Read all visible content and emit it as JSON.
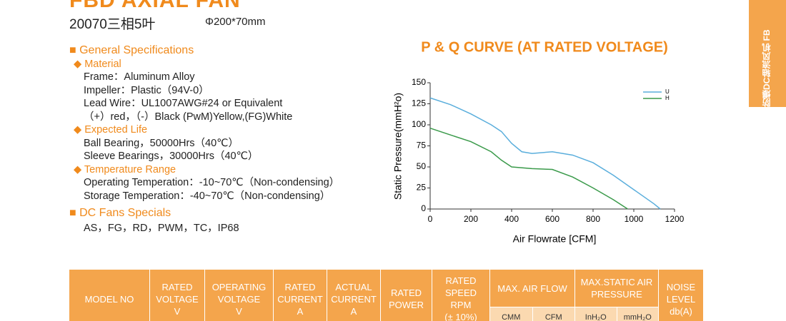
{
  "header": {
    "title": "FBD AXIAL FAN",
    "model": "20070三相5叶",
    "size": "Φ200*70mm"
  },
  "side_tab": "防爆DC轴流风机 FB",
  "specs": {
    "general_title": "General Specifications",
    "groups": [
      {
        "heading": "Material",
        "lines": [
          "Frame：Aluminum Alloy",
          "Impeller：Plastic（94V-0）",
          "Lead Wire：UL1007AWG#24 or Equivalent",
          "（+）red，（-）Black (PwM)Yellow,(FG)White"
        ]
      },
      {
        "heading": "Expected Life",
        "lines": [
          "Ball Bearing，50000Hrs（40℃）",
          "Sleeve Bearings，30000Hrs（40℃）"
        ]
      },
      {
        "heading": "Temperature Range",
        "lines": [
          "Operating Temperation：-10~70℃（Non-condensing）",
          "Storage Temperation：-40~70℃（Non-condensing）"
        ]
      }
    ],
    "specials_title": "DC Fans Specials",
    "specials": "AS，FG，RD，PWM，TC，IP68"
  },
  "chart_data": {
    "type": "line",
    "title": "P & Q CURVE (AT RATED VOLTAGE)",
    "x_label": "Air Flowrate [CFM]",
    "y_label": "Static Pressure(mmH²o)",
    "xlim": [
      0,
      1200
    ],
    "xticks": [
      0,
      200,
      400,
      600,
      800,
      1000,
      1200
    ],
    "ylim": [
      0,
      150
    ],
    "yticks": [
      0,
      25,
      50,
      75,
      100,
      125,
      150
    ],
    "series": [
      {
        "name": "U",
        "color": "#5aaedc",
        "x": [
          0,
          100,
          200,
          300,
          350,
          400,
          450,
          500,
          600,
          700,
          800,
          900,
          1000,
          1100,
          1130
        ],
        "values": [
          132,
          124,
          113,
          100,
          92,
          78,
          68,
          66,
          68,
          64,
          55,
          40,
          23,
          6,
          0
        ]
      },
      {
        "name": "H",
        "color": "#3a9a4a",
        "x": [
          0,
          100,
          200,
          300,
          350,
          400,
          500,
          600,
          700,
          800,
          900,
          970
        ],
        "values": [
          96,
          88,
          80,
          68,
          58,
          50,
          48,
          47,
          38,
          25,
          11,
          0
        ]
      }
    ]
  },
  "table": {
    "columns": [
      {
        "label": "MODEL NO"
      },
      {
        "label": "RATED\nVOLTAGE\nV"
      },
      {
        "label": "OPERATING\nVOLTAGE\nV"
      },
      {
        "label": "RATED\nCURRENT\nA"
      },
      {
        "label": "ACTUAL\nCURRENT\nA"
      },
      {
        "label": "RATED\nPOWER"
      },
      {
        "label": "RATED SPEED\nRPM\n(± 10%)"
      },
      {
        "label": "MAX. AIR FLOW",
        "sub": [
          "CMM",
          "CFM"
        ]
      },
      {
        "label": "MAX.STATIC AIR\nPRESSURE",
        "sub": [
          "InH₂O",
          "mmH₂O"
        ]
      },
      {
        "label": "NOISE\nLEVEL\ndb(A)"
      }
    ]
  }
}
